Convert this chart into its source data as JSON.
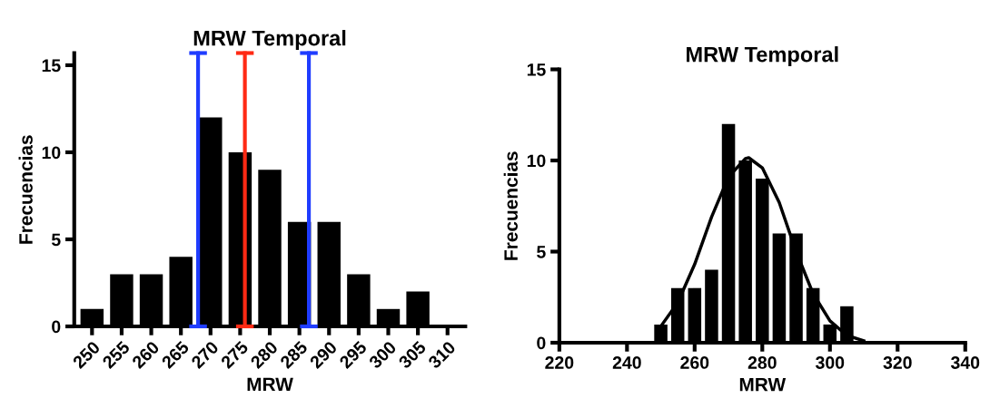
{
  "chart_data": [
    {
      "type": "bar",
      "title": "MRW Temporal",
      "xlabel": "MRW",
      "ylabel": "Frecuencias",
      "x": [
        250,
        255,
        260,
        265,
        270,
        275,
        280,
        285,
        290,
        295,
        300,
        305,
        310
      ],
      "values": [
        1,
        3,
        3,
        4,
        12,
        10,
        9,
        6,
        6,
        3,
        1,
        2,
        0
      ],
      "color": "#000000",
      "xlim": [
        247,
        313
      ],
      "xticks": [
        250,
        255,
        260,
        265,
        270,
        275,
        280,
        285,
        290,
        295,
        300,
        305,
        310
      ],
      "ylim": [
        0,
        15.7
      ],
      "yticks": [
        0,
        5,
        10,
        15
      ],
      "ref_lines": [
        {
          "axis": "x",
          "value": 267.9,
          "color": "#1f3cff"
        },
        {
          "axis": "x",
          "value": 275.8,
          "color": "#ff2a14"
        },
        {
          "axis": "x",
          "value": 286.6,
          "color": "#1f3cff"
        }
      ]
    },
    {
      "type": "bar",
      "title": "MRW Temporal",
      "xlabel": "MRW",
      "ylabel": "Frecuencias",
      "series": [
        {
          "type": "bar",
          "color": "#000000",
          "x": [
            250,
            255,
            260,
            265,
            270,
            275,
            280,
            285,
            290,
            295,
            300,
            305,
            310
          ],
          "values": [
            1,
            3,
            3,
            4,
            12,
            10,
            9,
            6,
            6,
            3,
            1,
            2,
            0
          ]
        },
        {
          "type": "line",
          "color": "#000000",
          "x": [
            250,
            255,
            260,
            265,
            270,
            275,
            276,
            280,
            285,
            290,
            295,
            300,
            305,
            310
          ],
          "values": [
            0.9,
            2.2,
            4.3,
            6.9,
            9.1,
            10.1,
            10.15,
            9.6,
            7.7,
            5.0,
            2.7,
            1.2,
            0.4,
            0.1
          ]
        }
      ],
      "xlim": [
        220,
        340
      ],
      "xticks": [
        220,
        240,
        260,
        280,
        300,
        320,
        340
      ],
      "ylim": [
        0,
        15
      ],
      "yticks": [
        0,
        5,
        10,
        15
      ]
    }
  ]
}
